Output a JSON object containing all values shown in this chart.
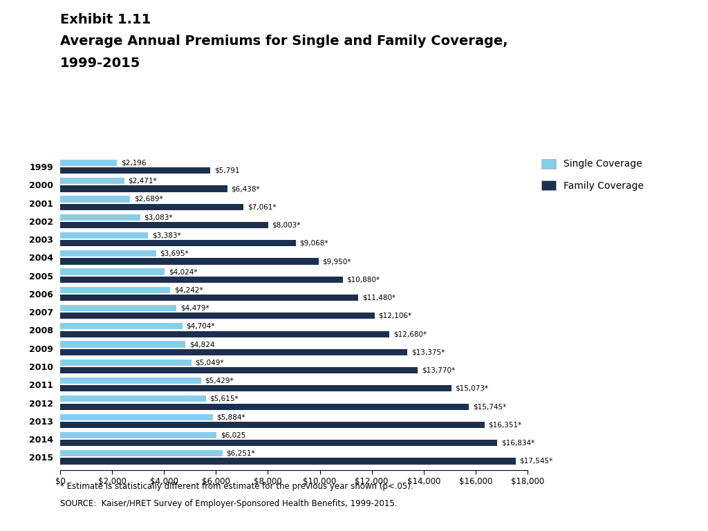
{
  "title_line1": "Exhibit 1.11",
  "title_line2": "Average Annual Premiums for Single and Family Coverage,",
  "title_line3": "1999-2015",
  "years": [
    "1999",
    "2000",
    "2001",
    "2002",
    "2003",
    "2004",
    "2005",
    "2006",
    "2007",
    "2008",
    "2009",
    "2010",
    "2011",
    "2012",
    "2013",
    "2014",
    "2015"
  ],
  "single": [
    2196,
    2471,
    2689,
    3083,
    3383,
    3695,
    4024,
    4242,
    4479,
    4704,
    4824,
    5049,
    5429,
    5615,
    5884,
    6025,
    6251
  ],
  "family": [
    5791,
    6438,
    7061,
    8003,
    9068,
    9950,
    10880,
    11480,
    12106,
    12680,
    13375,
    13770,
    15073,
    15745,
    16351,
    16834,
    17545
  ],
  "single_labels": [
    "$2,196",
    "$2,471*",
    "$2,689*",
    "$3,083*",
    "$3,383*",
    "$3,695*",
    "$4,024*",
    "$4,242*",
    "$4,479*",
    "$4,704*",
    "$4,824",
    "$5,049*",
    "$5,429*",
    "$5,615*",
    "$5,884*",
    "$6,025",
    "$6,251*"
  ],
  "family_labels": [
    "$5,791",
    "$6,438*",
    "$7,061*",
    "$8,003*",
    "$9,068*",
    "$9,950*",
    "$10,880*",
    "$11,480*",
    "$12,106*",
    "$12,680*",
    "$13,375*",
    "$13,770*",
    "$15,073*",
    "$15,745*",
    "$16,351*",
    "$16,834*",
    "$17,545*"
  ],
  "single_color": "#87CEEB",
  "family_color": "#1C2F4F",
  "xlim": [
    0,
    18000
  ],
  "xticks": [
    0,
    2000,
    4000,
    6000,
    8000,
    10000,
    12000,
    14000,
    16000,
    18000
  ],
  "xtick_labels": [
    "$0",
    "$2,000",
    "$4,000",
    "$6,000",
    "$8,000",
    "$10,000",
    "$12,000",
    "$14,000",
    "$16,000",
    "$18,000"
  ],
  "footnote1": "* Estimate is statistically different from estimate for the previous year shown (p<.05).",
  "footnote2": "SOURCE:  Kaiser/HRET Survey of Employer-Sponsored Health Benefits, 1999-2015.",
  "legend_single": "Single Coverage",
  "legend_family": "Family Coverage",
  "bg_color": "#FFFFFF"
}
